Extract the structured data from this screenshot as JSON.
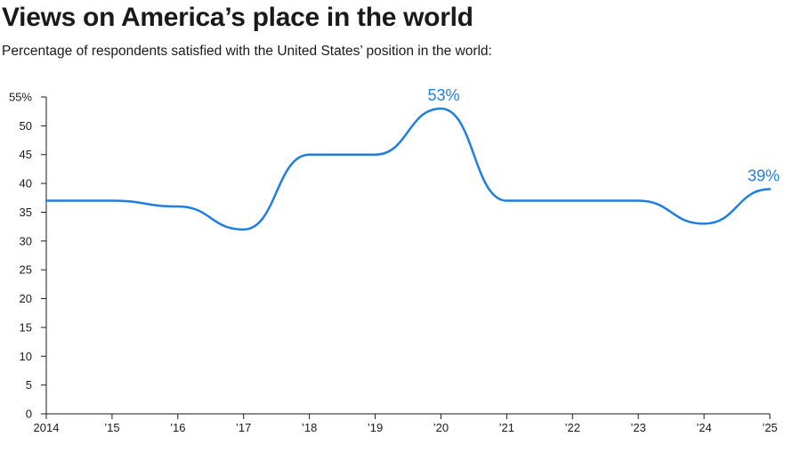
{
  "chart_data": {
    "type": "line",
    "title": "Views on America’s place in the world",
    "subtitle": "Percentage of respondents satisfied with the United States’ position in the world:",
    "xlabel": "",
    "ylabel": "",
    "x": [
      2014,
      2015,
      2016,
      2017,
      2018,
      2019,
      2020,
      2021,
      2022,
      2023,
      2024,
      2025
    ],
    "series": [
      {
        "values": [
          37,
          37,
          36,
          32,
          45,
          45,
          53,
          37,
          37,
          37,
          33,
          39
        ],
        "color": "#1f7fe0"
      }
    ],
    "ylim": [
      0,
      55
    ],
    "xlim": [
      2014,
      2025
    ],
    "y_ticks": [
      0,
      5,
      10,
      15,
      20,
      25,
      30,
      35,
      40,
      45,
      50,
      55
    ],
    "y_tick_labels": [
      "0",
      "5",
      "10",
      "15",
      "20",
      "25",
      "30",
      "35",
      "40",
      "45",
      "50",
      "55%"
    ],
    "x_ticks": [
      2014,
      2015,
      2016,
      2017,
      2018,
      2019,
      2020,
      2021,
      2022,
      2023,
      2024,
      2025
    ],
    "x_tick_labels": [
      "2014",
      "’15",
      "’16",
      "’17",
      "’18",
      "’19",
      "’20",
      "’21",
      "’22",
      "’23",
      "’24",
      "’25"
    ],
    "annotations": [
      {
        "x": 2020,
        "y": 53,
        "text": "53%"
      },
      {
        "x": 2025,
        "y": 39,
        "text": "39%"
      }
    ],
    "grid": false,
    "legend": "none"
  }
}
